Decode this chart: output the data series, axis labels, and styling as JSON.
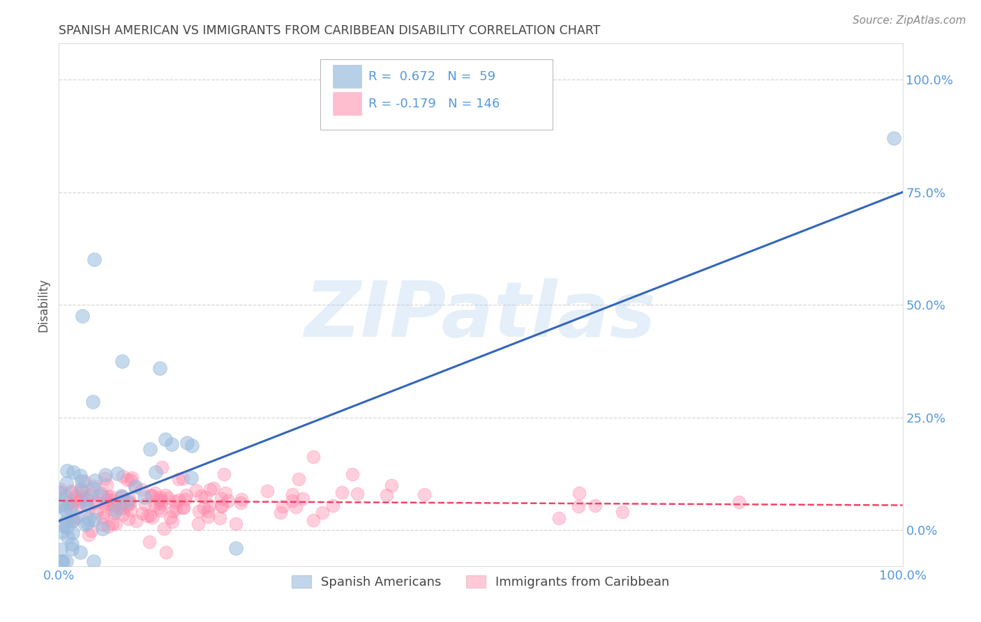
{
  "title": "SPANISH AMERICAN VS IMMIGRANTS FROM CARIBBEAN DISABILITY CORRELATION CHART",
  "source": "Source: ZipAtlas.com",
  "ylabel": "Disability",
  "xlim": [
    0,
    1
  ],
  "ylim": [
    -0.08,
    1.08
  ],
  "ytick_labels": [
    "0.0%",
    "25.0%",
    "50.0%",
    "75.0%",
    "100.0%"
  ],
  "ytick_vals": [
    0.0,
    0.25,
    0.5,
    0.75,
    1.0
  ],
  "xtick_labels": [
    "0.0%",
    "100.0%"
  ],
  "xtick_vals": [
    0.0,
    1.0
  ],
  "blue_R": 0.672,
  "blue_N": 59,
  "pink_R": -0.179,
  "pink_N": 146,
  "blue_color": "#99BBDD",
  "pink_color": "#FF88AA",
  "blue_line_color": "#3366BB",
  "pink_line_color": "#EE4466",
  "watermark_color": "#AACCEE",
  "background_color": "#FFFFFF",
  "grid_color": "#CCCCCC",
  "title_color": "#444444",
  "axis_label_color": "#555555",
  "tick_color": "#5599DD",
  "legend_label_blue": "Spanish Americans",
  "legend_label_pink": "Immigrants from Caribbean",
  "blue_seed": 42,
  "pink_seed": 123
}
